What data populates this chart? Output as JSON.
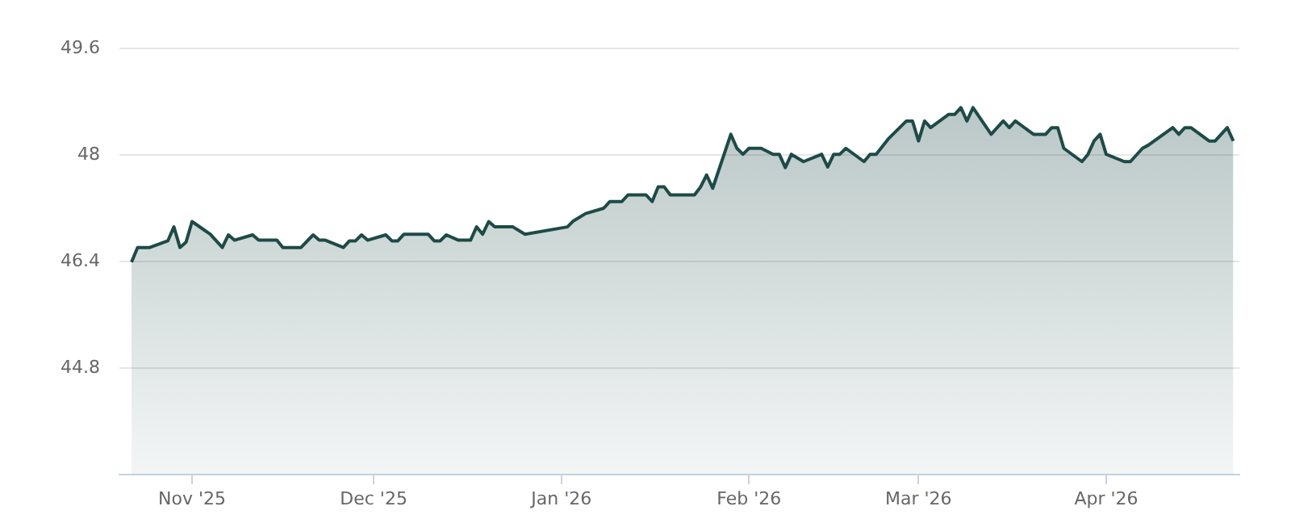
{
  "chart_data": {
    "type": "area",
    "x": [
      "2025-10-22",
      "2025-10-23",
      "2025-10-25",
      "2025-10-28",
      "2025-10-29",
      "2025-10-30",
      "2025-10-31",
      "2025-11-01",
      "2025-11-04",
      "2025-11-06",
      "2025-11-07",
      "2025-11-08",
      "2025-11-11",
      "2025-11-12",
      "2025-11-15",
      "2025-11-16",
      "2025-11-19",
      "2025-11-21",
      "2025-11-22",
      "2025-11-23",
      "2025-11-26",
      "2025-11-27",
      "2025-11-28",
      "2025-11-29",
      "2025-11-30",
      "2025-12-03",
      "2025-12-04",
      "2025-12-05",
      "2025-12-06",
      "2025-12-10",
      "2025-12-11",
      "2025-12-12",
      "2025-12-13",
      "2025-12-15",
      "2025-12-17",
      "2025-12-18",
      "2025-12-19",
      "2025-12-20",
      "2025-12-21",
      "2025-12-24",
      "2025-12-26",
      "2026-01-02",
      "2026-01-03",
      "2026-01-05",
      "2026-01-08",
      "2026-01-09",
      "2026-01-11",
      "2026-01-12",
      "2026-01-15",
      "2026-01-16",
      "2026-01-17",
      "2026-01-18",
      "2026-01-19",
      "2026-01-23",
      "2026-01-24",
      "2026-01-25",
      "2026-01-26",
      "2026-01-29",
      "2026-01-30",
      "2026-01-31",
      "2026-02-01",
      "2026-02-03",
      "2026-02-05",
      "2026-02-06",
      "2026-02-07",
      "2026-02-08",
      "2026-02-10",
      "2026-02-13",
      "2026-02-14",
      "2026-02-15",
      "2026-02-16",
      "2026-02-17",
      "2026-02-20",
      "2026-02-21",
      "2026-02-22",
      "2026-02-24",
      "2026-02-27",
      "2026-02-28",
      "2026-03-01",
      "2026-03-02",
      "2026-03-03",
      "2026-03-06",
      "2026-03-07",
      "2026-03-08",
      "2026-03-09",
      "2026-03-10",
      "2026-03-13",
      "2026-03-15",
      "2026-03-16",
      "2026-03-17",
      "2026-03-20",
      "2026-03-22",
      "2026-03-23",
      "2026-03-24",
      "2026-03-25",
      "2026-03-28",
      "2026-03-29",
      "2026-03-30",
      "2026-03-31",
      "2026-04-01",
      "2026-04-04",
      "2026-04-05",
      "2026-04-07",
      "2026-04-08",
      "2026-04-12",
      "2026-04-13",
      "2026-04-14",
      "2026-04-15",
      "2026-04-18",
      "2026-04-19",
      "2026-04-21",
      "2026-04-22"
    ],
    "series": [
      {
        "color": "#1d4b47",
        "values": [
          46.39,
          46.61,
          46.61,
          46.71,
          46.92,
          46.61,
          46.69,
          47.0,
          46.81,
          46.61,
          46.8,
          46.72,
          46.8,
          46.72,
          46.72,
          46.61,
          46.61,
          46.8,
          46.72,
          46.72,
          46.61,
          46.71,
          46.71,
          46.8,
          46.72,
          46.8,
          46.71,
          46.71,
          46.81,
          46.81,
          46.71,
          46.71,
          46.8,
          46.72,
          46.72,
          46.92,
          46.81,
          47.0,
          46.92,
          46.92,
          46.81,
          46.92,
          47.01,
          47.12,
          47.2,
          47.3,
          47.3,
          47.4,
          47.4,
          47.3,
          47.52,
          47.52,
          47.4,
          47.4,
          47.52,
          47.7,
          47.5,
          48.31,
          48.1,
          48.01,
          48.1,
          48.1,
          48.01,
          48.01,
          47.81,
          48.01,
          47.9,
          48.01,
          47.82,
          48.01,
          48.01,
          48.1,
          47.9,
          48.01,
          48.01,
          48.24,
          48.51,
          48.51,
          48.21,
          48.51,
          48.41,
          48.61,
          48.61,
          48.71,
          48.51,
          48.71,
          48.31,
          48.51,
          48.41,
          48.51,
          48.31,
          48.31,
          48.41,
          48.41,
          48.1,
          47.9,
          48.01,
          48.21,
          48.31,
          48.01,
          47.9,
          47.9,
          48.1,
          48.15,
          48.41,
          48.31,
          48.41,
          48.41,
          48.21,
          48.21,
          48.41,
          48.21
        ]
      }
    ],
    "xlim": [
      "2025-10-20",
      "2026-04-23"
    ],
    "xticks": [
      {
        "value": "2025-11-01",
        "label": "Nov '25"
      },
      {
        "value": "2025-12-01",
        "label": "Dec '25"
      },
      {
        "value": "2026-01-01",
        "label": "Jan '26"
      },
      {
        "value": "2026-02-01",
        "label": "Feb '26"
      },
      {
        "value": "2026-03-01",
        "label": "Mar '26"
      },
      {
        "value": "2026-04-01",
        "label": "Apr '26"
      }
    ],
    "ylim": [
      43.2,
      49.6
    ],
    "yticks": [
      44.8,
      46.4,
      48,
      49.6
    ],
    "grid": "y",
    "legend": false,
    "marker": "none",
    "line_style": "solid"
  }
}
